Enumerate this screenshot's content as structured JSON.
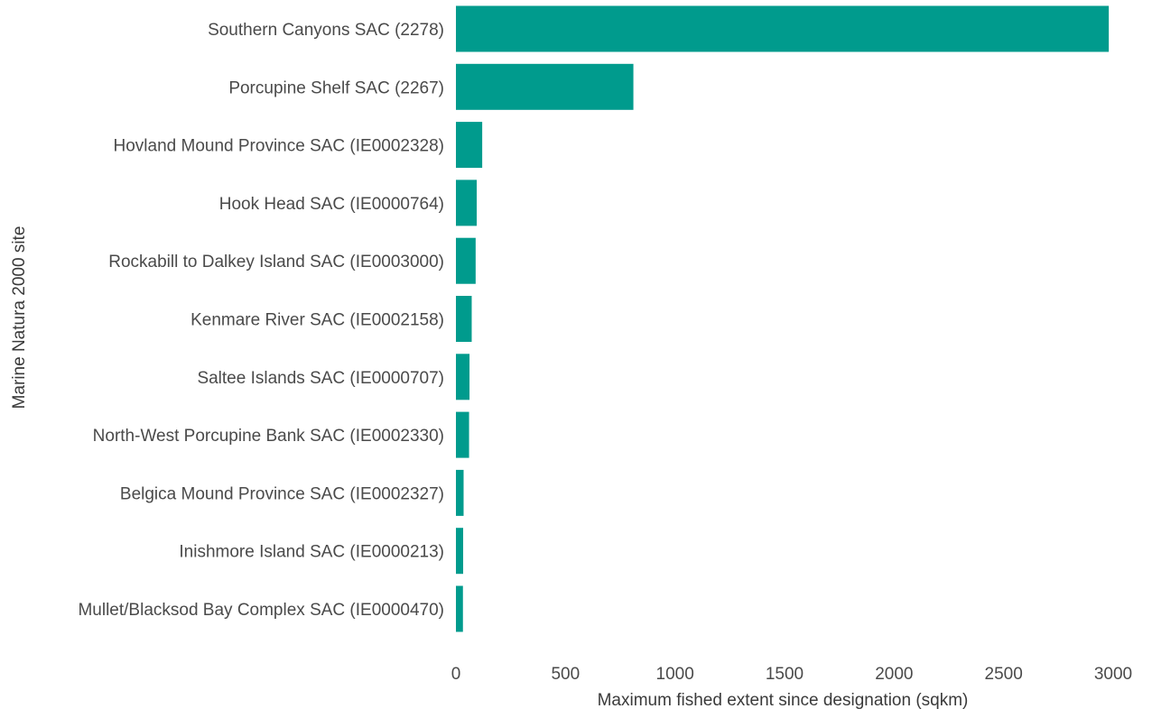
{
  "chart_data": {
    "type": "bar",
    "orientation": "horizontal",
    "categories": [
      "Southern Canyons SAC (2278)",
      "Porcupine Shelf SAC (2267)",
      "Hovland Mound Province SAC (IE0002328)",
      "Hook Head SAC (IE0000764)",
      "Rockabill to Dalkey Island SAC (IE0003000)",
      "Kenmare River SAC (IE0002158)",
      "Saltee Islands SAC (IE0000707)",
      "North-West Porcupine Bank SAC (IE0002330)",
      "Belgica Mound Province SAC (IE0002327)",
      "Inishmore Island SAC (IE0000213)",
      "Mullet/Blacksod Bay Complex SAC (IE0000470)"
    ],
    "values": [
      2980,
      810,
      120,
      95,
      90,
      72,
      62,
      60,
      35,
      33,
      32
    ],
    "xlabel": "Maximum fished extent since designation (sqkm)",
    "ylabel": "Marine Natura 2000 site",
    "xlim": [
      0,
      3000
    ],
    "xticks": [
      "0",
      "500",
      "1000",
      "1500",
      "2000",
      "2500",
      "3000"
    ],
    "grid": false,
    "colors": {
      "bar": "#009B8D"
    }
  }
}
